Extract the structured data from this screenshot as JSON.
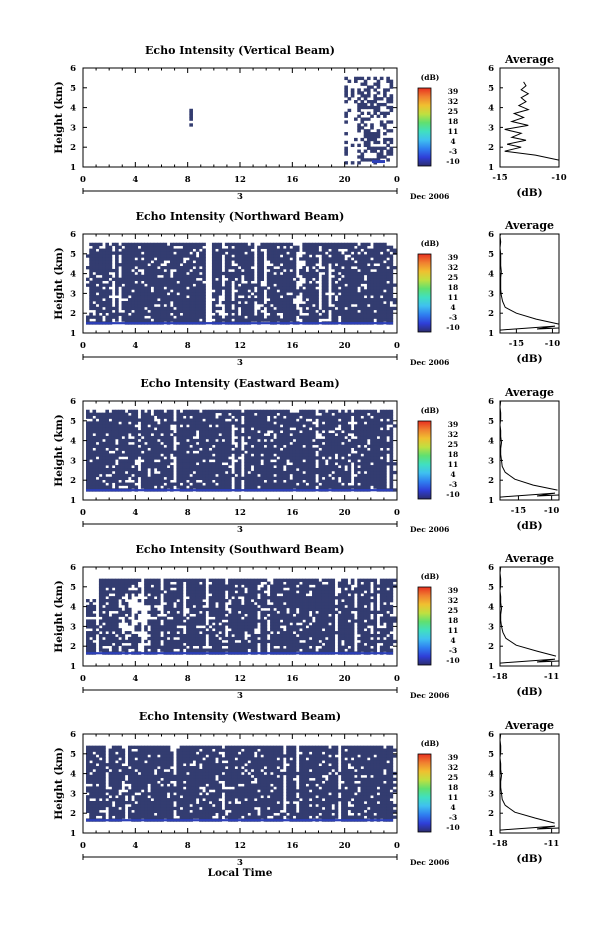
{
  "chart_data": [
    {
      "type": "heatmap",
      "title": "Echo Intensity (Vertical Beam)",
      "ylabel": "Height (km)",
      "xlabel": "",
      "x_ticks": [
        "0",
        "4",
        "8",
        "12",
        "16",
        "20",
        "0"
      ],
      "y_ticks": [
        "1",
        "2",
        "3",
        "4",
        "5",
        "6"
      ],
      "day_label": "3",
      "date_label": "Dec 2006",
      "xlim": [
        0,
        24
      ],
      "ylim": [
        1,
        6
      ],
      "colorbar": {
        "unit": "(dB)",
        "ticks": [
          "39",
          "32",
          "25",
          "18",
          "11",
          "4",
          "-3",
          "-10"
        ],
        "range": [
          -10,
          39
        ]
      },
      "pattern": "vertical",
      "average": {
        "title": "Average",
        "xlabel": "(dB)",
        "x_ticks": [
          "-15",
          "-10"
        ],
        "xlim": [
          -15,
          -10
        ],
        "y_ticks": [
          "1",
          "2",
          "3",
          "4",
          "5",
          "6"
        ],
        "ylim": [
          1,
          6
        ],
        "x": [
          -9.2,
          -12.0,
          -14.6,
          -13.2,
          -14.4,
          -12.8,
          -14.0,
          -13.2,
          -14.6,
          -12.6,
          -14.0,
          -13.0,
          -13.8,
          -12.6,
          -13.4,
          -12.8,
          -13.2,
          -12.6,
          -13.2,
          -12.8,
          -13.0
        ],
        "y": [
          1.35,
          1.6,
          1.8,
          2.0,
          2.15,
          2.35,
          2.5,
          2.7,
          2.9,
          3.1,
          3.3,
          3.5,
          3.7,
          3.9,
          4.1,
          4.3,
          4.5,
          4.7,
          4.9,
          5.1,
          5.3
        ]
      }
    },
    {
      "type": "heatmap",
      "title": "Echo Intensity (Northward Beam)",
      "ylabel": "Height (km)",
      "xlabel": "",
      "x_ticks": [
        "0",
        "4",
        "8",
        "12",
        "16",
        "20",
        "0"
      ],
      "y_ticks": [
        "1",
        "2",
        "3",
        "4",
        "5",
        "6"
      ],
      "day_label": "3",
      "date_label": "Dec 2006",
      "xlim": [
        0,
        24
      ],
      "ylim": [
        1,
        6
      ],
      "colorbar": {
        "unit": "(dB)",
        "ticks": [
          "39",
          "32",
          "25",
          "18",
          "11",
          "4",
          "-3",
          "-10"
        ],
        "range": [
          -10,
          39
        ]
      },
      "pattern": "north",
      "average": {
        "title": "Average",
        "xlabel": "(dB)",
        "x_ticks": [
          "-15",
          "-10"
        ],
        "xlim": [
          -18,
          -9
        ],
        "y_ticks": [
          "1",
          "2",
          "3",
          "4",
          "5",
          "6"
        ],
        "ylim": [
          1,
          6
        ],
        "x": [
          -9.0,
          -12.5,
          -15.5,
          -17.2,
          -17.6,
          -17.8,
          -17.9,
          -17.9,
          -17.9,
          -17.8,
          -17.9,
          -17.9,
          -17.9,
          -18.0,
          -17.9,
          -18.0,
          -17.9,
          -17.8
        ],
        "y": [
          1.45,
          1.7,
          2.0,
          2.3,
          2.6,
          2.9,
          3.2,
          3.5,
          3.8,
          4.1,
          4.4,
          4.7,
          5.0,
          5.3,
          5.6,
          5.9,
          6.0,
          6.0
        ]
      }
    },
    {
      "type": "heatmap",
      "title": "Echo Intensity (Eastward Beam)",
      "ylabel": "Height (km)",
      "xlabel": "",
      "x_ticks": [
        "0",
        "4",
        "8",
        "12",
        "16",
        "20",
        "0"
      ],
      "y_ticks": [
        "1",
        "2",
        "3",
        "4",
        "5",
        "6"
      ],
      "day_label": "3",
      "date_label": "Dec 2006",
      "xlim": [
        0,
        24
      ],
      "ylim": [
        1,
        6
      ],
      "colorbar": {
        "unit": "(dB)",
        "ticks": [
          "39",
          "32",
          "25",
          "18",
          "11",
          "4",
          "-3",
          "-10"
        ],
        "range": [
          -10,
          39
        ]
      },
      "pattern": "east",
      "average": {
        "title": "Average",
        "xlabel": "(dB)",
        "x_ticks": [
          "-15",
          "-10"
        ],
        "xlim": [
          -18,
          -10
        ],
        "y_ticks": [
          "1",
          "2",
          "3",
          "4",
          "5",
          "6"
        ],
        "ylim": [
          1,
          6
        ],
        "x": [
          -10.2,
          -13.5,
          -16.0,
          -17.3,
          -17.7,
          -17.8,
          -17.9,
          -17.9,
          -17.8,
          -17.9,
          -17.9,
          -18.0,
          -17.9,
          -17.9,
          -18.0,
          -17.9,
          -17.8
        ],
        "y": [
          1.5,
          1.75,
          2.05,
          2.4,
          2.7,
          3.0,
          3.3,
          3.6,
          3.9,
          4.2,
          4.5,
          4.8,
          5.1,
          5.4,
          5.7,
          6.0,
          6.0
        ]
      }
    },
    {
      "type": "heatmap",
      "title": "Echo Intensity (Southward Beam)",
      "ylabel": "Height (km)",
      "xlabel": "",
      "x_ticks": [
        "0",
        "4",
        "8",
        "12",
        "16",
        "20",
        "0"
      ],
      "y_ticks": [
        "1",
        "2",
        "3",
        "4",
        "5",
        "6"
      ],
      "day_label": "3",
      "date_label": "Dec 2006",
      "xlim": [
        0,
        24
      ],
      "ylim": [
        1,
        6
      ],
      "colorbar": {
        "unit": "(dB)",
        "ticks": [
          "39",
          "32",
          "25",
          "18",
          "11",
          "4",
          "-3",
          "-10"
        ],
        "range": [
          -10,
          39
        ]
      },
      "pattern": "south",
      "average": {
        "title": "Average",
        "xlabel": "(dB)",
        "x_ticks": [
          "-18",
          "-11"
        ],
        "xlim": [
          -18,
          -10
        ],
        "y_ticks": [
          "1",
          "2",
          "3",
          "4",
          "5",
          "6"
        ],
        "ylim": [
          1,
          6
        ],
        "x": [
          -10.4,
          -13.0,
          -15.8,
          -17.2,
          -17.6,
          -17.8,
          -17.9,
          -17.9,
          -17.8,
          -17.9,
          -17.9,
          -18.0,
          -17.9,
          -17.9,
          -18.0,
          -17.9,
          -17.8
        ],
        "y": [
          1.5,
          1.75,
          2.05,
          2.4,
          2.7,
          3.0,
          3.3,
          3.6,
          3.9,
          4.2,
          4.5,
          4.8,
          5.1,
          5.4,
          5.7,
          6.0,
          6.0
        ]
      }
    },
    {
      "type": "heatmap",
      "title": "Echo Intensity (Westward Beam)",
      "ylabel": "Height (km)",
      "xlabel": "Local Time",
      "x_ticks": [
        "0",
        "4",
        "8",
        "12",
        "16",
        "20",
        "0"
      ],
      "y_ticks": [
        "1",
        "2",
        "3",
        "4",
        "5",
        "6"
      ],
      "day_label": "3",
      "date_label": "Dec 2006",
      "xlim": [
        0,
        24
      ],
      "ylim": [
        1,
        6
      ],
      "colorbar": {
        "unit": "(dB)",
        "ticks": [
          "39",
          "32",
          "25",
          "18",
          "11",
          "4",
          "-3",
          "-10"
        ],
        "range": [
          -10,
          39
        ]
      },
      "pattern": "west",
      "average": {
        "title": "Average",
        "xlabel": "(dB)",
        "x_ticks": [
          "-18",
          "-11"
        ],
        "xlim": [
          -18,
          -10
        ],
        "y_ticks": [
          "1",
          "2",
          "3",
          "4",
          "5",
          "6"
        ],
        "ylim": [
          1,
          6
        ],
        "x": [
          -10.6,
          -13.2,
          -16.0,
          -17.3,
          -17.7,
          -17.8,
          -17.9,
          -17.9,
          -17.8,
          -17.9,
          -17.9,
          -18.0,
          -17.9,
          -17.9,
          -18.0,
          -17.9,
          -17.8
        ],
        "y": [
          1.5,
          1.75,
          2.05,
          2.4,
          2.7,
          3.0,
          3.3,
          3.6,
          3.9,
          4.2,
          4.5,
          4.8,
          5.1,
          5.4,
          5.7,
          6.0,
          6.0
        ]
      }
    }
  ],
  "colors": {
    "echo_fill": "#333c70",
    "echo_edge": "#2c3fb8",
    "colorbar_stops": [
      "#2c2c6e",
      "#2f3fd8",
      "#2f7ff0",
      "#3fc0f0",
      "#40e0c0",
      "#60e070",
      "#c0e040",
      "#f0c030",
      "#f08030",
      "#e83020"
    ]
  }
}
